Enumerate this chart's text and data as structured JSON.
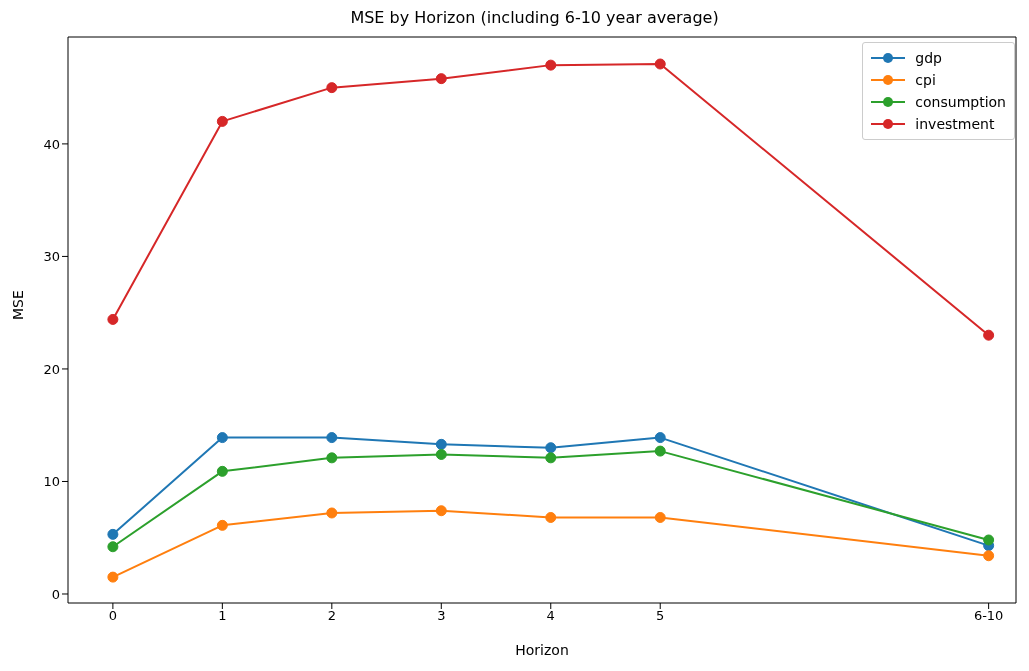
{
  "chart_data": {
    "type": "line",
    "title": "MSE by Horizon (including 6-10 year average)",
    "xlabel": "Horizon",
    "ylabel": "MSE",
    "x": [
      0,
      1,
      2,
      3,
      4,
      5,
      8
    ],
    "xlim": [
      -0.41,
      8.25
    ],
    "xticks": [
      0,
      1,
      2,
      3,
      4,
      5,
      {
        "value": 8,
        "label": "6-10"
      }
    ],
    "ylim": [
      -0.8,
      49.5
    ],
    "yticks": [
      0,
      10,
      20,
      30,
      40
    ],
    "series": [
      {
        "name": "gdp",
        "color": "#1f77b4",
        "values": [
          5.3,
          13.9,
          13.9,
          13.3,
          13.0,
          13.9,
          4.3
        ]
      },
      {
        "name": "cpi",
        "color": "#ff7f0e",
        "values": [
          1.5,
          6.1,
          7.2,
          7.4,
          6.8,
          6.8,
          3.4
        ]
      },
      {
        "name": "consumption",
        "color": "#2ca02c",
        "values": [
          4.2,
          10.9,
          12.1,
          12.4,
          12.1,
          12.7,
          4.8
        ]
      },
      {
        "name": "investment",
        "color": "#d62728",
        "values": [
          24.4,
          42.0,
          45.0,
          45.8,
          47.0,
          47.1,
          23.0
        ]
      }
    ],
    "grid": false,
    "legend": "top right",
    "marker": "circle",
    "line_style": "solid"
  }
}
